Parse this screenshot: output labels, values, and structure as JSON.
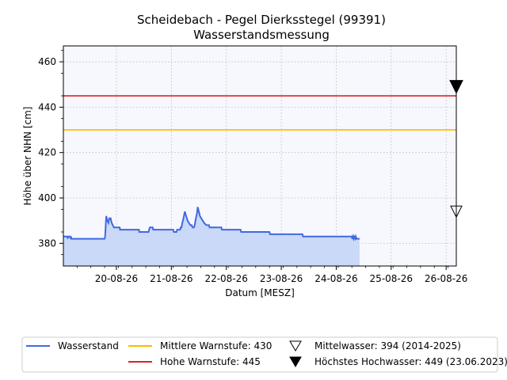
{
  "chart_data": {
    "type": "line",
    "title": "Scheidebach - Pegel Dierkssteg​el (99391)",
    "subtitle": "Wasserstandsmessung",
    "xlabel": "Datum [MESZ]",
    "ylabel": "Höhe über NHN [cm]",
    "x_ticks": [
      "20-08-26",
      "21-08-26",
      "22-08-26",
      "23-08-26",
      "24-08-26",
      "25-08-26",
      "26-08-26"
    ],
    "y_ticks": [
      "380",
      "400",
      "420",
      "440",
      "460"
    ],
    "x_range": [
      "19-08-26 02:00",
      "26-08-26 06:00"
    ],
    "ylim": [
      370,
      467
    ],
    "grid": true,
    "fill_color": "#c9d9f7",
    "plot_bg": "#f7f8fe",
    "series": [
      {
        "name": "Wasserstand",
        "color": "#4169e1",
        "points": [
          [
            0.0,
            383
          ],
          [
            0.15,
            383
          ],
          [
            0.16,
            382
          ],
          [
            0.17,
            383
          ],
          [
            0.25,
            383
          ],
          [
            0.26,
            382
          ],
          [
            0.28,
            383
          ],
          [
            0.29,
            382
          ],
          [
            1.5,
            382
          ],
          [
            1.52,
            383
          ],
          [
            1.55,
            390
          ],
          [
            1.56,
            392
          ],
          [
            1.6,
            390
          ],
          [
            1.64,
            389
          ],
          [
            1.67,
            391
          ],
          [
            1.72,
            391
          ],
          [
            1.76,
            389
          ],
          [
            1.8,
            388
          ],
          [
            1.84,
            387
          ],
          [
            2.05,
            387
          ],
          [
            2.06,
            386
          ],
          [
            2.75,
            386
          ],
          [
            2.76,
            385
          ],
          [
            3.1,
            385
          ],
          [
            3.12,
            386
          ],
          [
            3.15,
            387
          ],
          [
            3.25,
            387
          ],
          [
            3.27,
            386
          ],
          [
            4.0,
            386
          ],
          [
            4.02,
            385
          ],
          [
            4.12,
            385
          ],
          [
            4.14,
            386
          ],
          [
            4.25,
            386
          ],
          [
            4.27,
            387
          ],
          [
            4.3,
            387
          ],
          [
            4.33,
            389
          ],
          [
            4.37,
            391
          ],
          [
            4.42,
            394
          ],
          [
            4.47,
            392
          ],
          [
            4.52,
            390
          ],
          [
            4.57,
            389
          ],
          [
            4.62,
            388
          ],
          [
            4.67,
            388
          ],
          [
            4.7,
            387
          ],
          [
            4.75,
            387
          ],
          [
            4.78,
            388
          ],
          [
            4.82,
            391
          ],
          [
            4.86,
            393
          ],
          [
            4.89,
            396
          ],
          [
            4.93,
            394
          ],
          [
            4.97,
            392
          ],
          [
            5.02,
            391
          ],
          [
            5.07,
            390
          ],
          [
            5.12,
            389
          ],
          [
            5.2,
            388
          ],
          [
            5.3,
            388
          ],
          [
            5.32,
            387
          ],
          [
            5.75,
            387
          ],
          [
            5.77,
            386
          ],
          [
            6.45,
            386
          ],
          [
            6.47,
            385
          ],
          [
            7.5,
            385
          ],
          [
            7.52,
            384
          ],
          [
            8.7,
            384
          ],
          [
            8.72,
            383
          ],
          [
            10.5,
            383
          ],
          [
            10.51,
            382
          ],
          [
            10.53,
            383
          ],
          [
            10.56,
            382
          ],
          [
            10.58,
            383
          ],
          [
            10.62,
            382
          ],
          [
            10.64,
            383
          ],
          [
            10.67,
            382
          ],
          [
            10.78,
            382
          ]
        ]
      },
      {
        "name": "Mittlere Warnstufe: 430",
        "color": "#ffb800",
        "value": 430
      },
      {
        "name": "Hohe Warnstufe: 445",
        "color": "#dd2222",
        "value": 445
      }
    ],
    "markers": [
      {
        "name": "Mittelwasser: 394 (2014-2025)",
        "value": 394,
        "symbol": "triangle-down-open"
      },
      {
        "name": "Höchstes Hochwasser: 449 (23.06.2023)",
        "value": 449,
        "symbol": "triangle-down-filled"
      }
    ],
    "legend_placement": "bottom"
  }
}
